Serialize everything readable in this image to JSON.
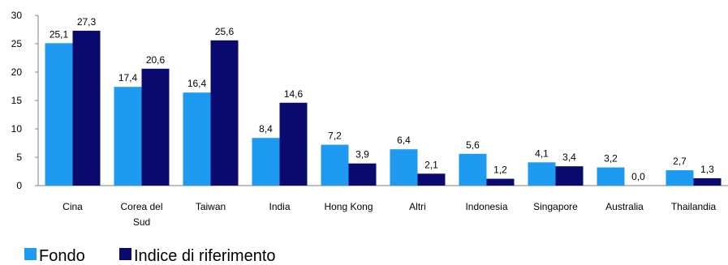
{
  "chart_data": {
    "type": "bar",
    "categories": [
      [
        "Cina"
      ],
      [
        "Corea del",
        "Sud"
      ],
      [
        "Taiwan"
      ],
      [
        "India"
      ],
      [
        "Hong Kong"
      ],
      [
        "Altri"
      ],
      [
        "Indonesia"
      ],
      [
        "Singapore"
      ],
      [
        "Australia"
      ],
      [
        "Thailandia"
      ]
    ],
    "series": [
      {
        "name": "Fondo",
        "color": "#1E9BF0",
        "values": [
          25.1,
          17.4,
          16.4,
          8.4,
          7.2,
          6.4,
          5.6,
          4.1,
          3.2,
          2.7
        ],
        "labels": [
          "25,1",
          "17,4",
          "16,4",
          "8,4",
          "7,2",
          "6,4",
          "5,6",
          "4,1",
          "3,2",
          "2,7"
        ]
      },
      {
        "name": "Indice di riferimento",
        "color": "#0A0A6E",
        "values": [
          27.3,
          20.6,
          25.6,
          14.6,
          3.9,
          2.1,
          1.2,
          3.4,
          0.0,
          1.3
        ],
        "labels": [
          "27,3",
          "20,6",
          "25,6",
          "14,6",
          "3,9",
          "2,1",
          "1,2",
          "3,4",
          "0,0",
          "1,3"
        ]
      }
    ],
    "ylim": [
      0,
      30
    ],
    "yticks": [
      "0",
      "5",
      "10",
      "15",
      "20",
      "25",
      "30"
    ],
    "grid": false,
    "legend_position": "bottom-left"
  }
}
